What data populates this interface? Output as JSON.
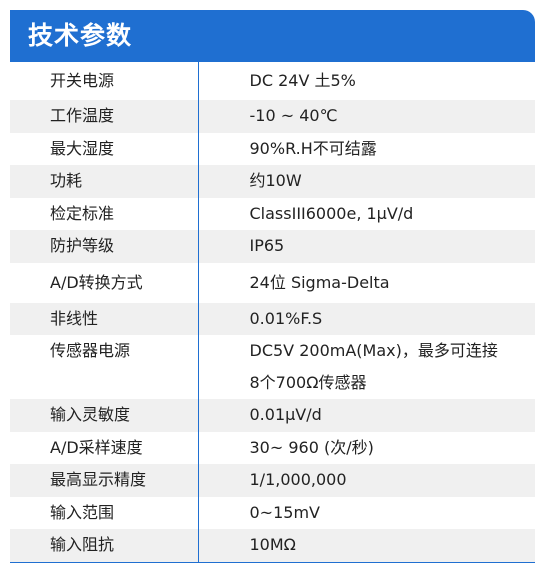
{
  "header": {
    "title": "技术参数"
  },
  "rows": [
    {
      "label": "开关电源",
      "value": "DC 24V 土5%"
    },
    {
      "label": "工作温度",
      "value": "-10 ~ 40℃"
    },
    {
      "label": "最大湿度",
      "value": "90%R.H不可结露"
    },
    {
      "label": "功耗",
      "value": "约10W"
    },
    {
      "label": "检定标准",
      "value": "ClassIII6000e, 1μV/d"
    },
    {
      "label": "防护等级",
      "value": "IP65"
    },
    {
      "label": "A/D转换方式",
      "value": "24位 Sigma-Delta"
    },
    {
      "label": "非线性",
      "value": "0.01%F.S"
    },
    {
      "label": "传感器电源",
      "value_line1": "DC5V 200mA(Max)，最多可连接",
      "value_line2": "8个700Ω传感器"
    },
    {
      "label": "输入灵敏度",
      "value": "0.01μV/d"
    },
    {
      "label": "A/D采样速度",
      "value": "30~ 960 (次/秒)"
    },
    {
      "label": "最高显示精度",
      "value": "1/1,000,000"
    },
    {
      "label": "输入范围",
      "value": "0~15mV"
    },
    {
      "label": "输入阻抗",
      "value": "10MΩ"
    }
  ]
}
